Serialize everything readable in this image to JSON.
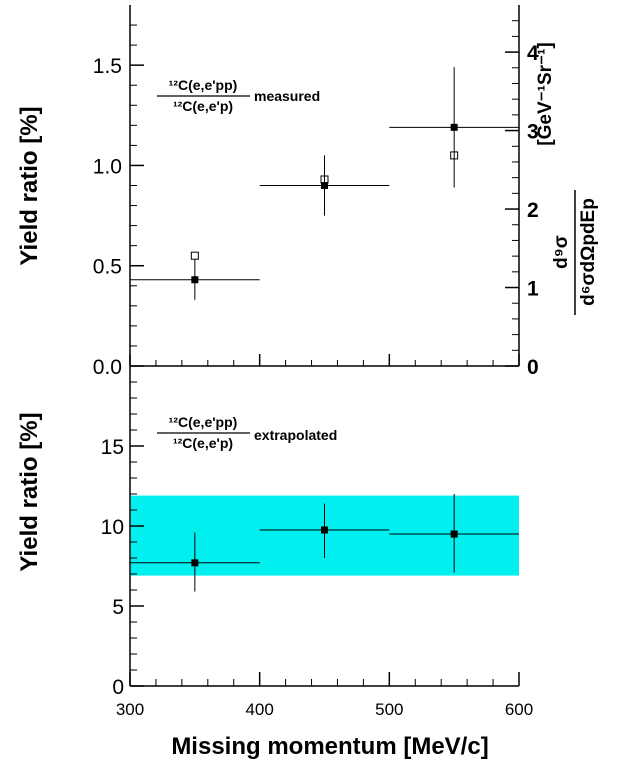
{
  "colors": {
    "band": "#00f0f0",
    "ink": "#000000"
  },
  "x_axis": {
    "title": "Missing momentum [MeV/c]",
    "range": [
      300,
      600
    ],
    "ticks": [
      300,
      400,
      500,
      600
    ],
    "tick_labels": [
      "300",
      "400",
      "500",
      "600"
    ]
  },
  "top_panel": {
    "ylabel": "Yield ratio  [%]",
    "ylim": [
      0,
      1.8
    ],
    "yticks": [
      0,
      0.5,
      1.0,
      1.5
    ],
    "ytick_labels": [
      "0.0",
      "0.5",
      "1.0",
      "1.5"
    ],
    "right_axis": {
      "range": [
        0,
        4.6
      ],
      "ticks": [
        0,
        1,
        2,
        3,
        4
      ],
      "tick_labels": [
        "0",
        "1",
        "2",
        "3",
        "4"
      ],
      "label_num": "d⁹σ",
      "label_den": "d⁶σdΩpdEp",
      "unit": "[GeV⁻¹Sr⁻¹]"
    },
    "annotation": {
      "num": "¹²C(e,e'pp)",
      "den": "¹²C(e,e'p)",
      "suffix": "measured"
    }
  },
  "bottom_panel": {
    "ylabel": "Yield ratio  [%]",
    "ylim": [
      0,
      20
    ],
    "yticks": [
      0,
      5,
      10,
      15
    ],
    "ytick_labels": [
      "0",
      "5",
      "10",
      "15"
    ],
    "annotation": {
      "num": "¹²C(e,e'pp)",
      "den": "¹²C(e,e'p)",
      "suffix": "extrapolated"
    }
  },
  "chart_data": [
    {
      "type": "scatter",
      "panel": "top",
      "xlabel": "Missing momentum [MeV/c]",
      "ylabel": "Yield ratio  [%]",
      "xlim": [
        300,
        600
      ],
      "ylim": [
        0,
        1.8
      ],
      "grid": false,
      "series": [
        {
          "marker": "filled-square",
          "points": [
            {
              "x": 350,
              "xerr": [
                300,
                400
              ],
              "y": 0.43,
              "yerr": [
                0.33,
                0.53
              ]
            },
            {
              "x": 450,
              "xerr": [
                400,
                500
              ],
              "y": 0.9,
              "yerr": [
                0.75,
                1.05
              ]
            },
            {
              "x": 550,
              "xerr": [
                500,
                600
              ],
              "y": 1.19,
              "yerr": [
                0.89,
                1.49
              ]
            }
          ]
        },
        {
          "marker": "open-square",
          "points": [
            {
              "x": 350,
              "y": 0.55
            },
            {
              "x": 450,
              "y": 0.93
            },
            {
              "x": 550,
              "y": 1.05
            }
          ]
        }
      ]
    },
    {
      "type": "scatter",
      "panel": "bottom",
      "xlabel": "Missing momentum [MeV/c]",
      "ylabel": "Yield ratio  [%]",
      "xlim": [
        300,
        600
      ],
      "ylim": [
        0,
        20
      ],
      "grid": false,
      "band": {
        "y_low": 6.9,
        "y_high": 11.9
      },
      "series": [
        {
          "marker": "filled-square",
          "points": [
            {
              "x": 350,
              "xerr": [
                300,
                400
              ],
              "y": 7.7,
              "yerr": [
                5.9,
                9.6
              ]
            },
            {
              "x": 450,
              "xerr": [
                400,
                500
              ],
              "y": 9.75,
              "yerr": [
                8.0,
                11.4
              ]
            },
            {
              "x": 550,
              "xerr": [
                500,
                600
              ],
              "y": 9.5,
              "yerr": [
                7.1,
                12.0
              ]
            }
          ]
        }
      ]
    }
  ]
}
